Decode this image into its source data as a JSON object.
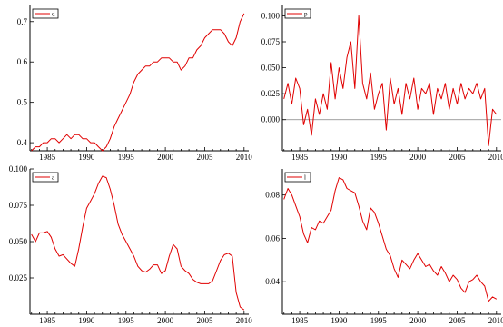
{
  "chart_data": [
    {
      "type": "line",
      "x_range": [
        1982.8,
        2010.6
      ],
      "ylim": [
        0.38,
        0.74
      ],
      "yticks": [
        0.4,
        0.5,
        0.6,
        0.7
      ],
      "ytick_labels": [
        "0.4",
        "0.5",
        "0.6",
        "0.7"
      ],
      "xticks": [
        1985,
        1990,
        1995,
        2000,
        2005,
        2010
      ],
      "xtick_labels": [
        "1985",
        "1990",
        "1995",
        "2000",
        "2005",
        "2010"
      ],
      "zero_line": false,
      "legend": "top-left",
      "colors": {
        "series": "#e00000"
      },
      "series": [
        {
          "name": "d",
          "x": [
            1983.0,
            1983.5,
            1984.0,
            1984.5,
            1985.0,
            1985.5,
            1986.0,
            1986.5,
            1987.0,
            1987.5,
            1988.0,
            1988.5,
            1989.0,
            1989.5,
            1990.0,
            1990.5,
            1991.0,
            1991.5,
            1992.0,
            1992.5,
            1993.0,
            1993.5,
            1994.0,
            1994.5,
            1995.0,
            1995.5,
            1996.0,
            1996.5,
            1997.0,
            1997.5,
            1998.0,
            1998.5,
            1999.0,
            1999.5,
            2000.0,
            2000.5,
            2001.0,
            2001.5,
            2002.0,
            2002.5,
            2003.0,
            2003.5,
            2004.0,
            2004.5,
            2005.0,
            2005.5,
            2006.0,
            2006.5,
            2007.0,
            2007.5,
            2008.0,
            2008.5,
            2009.0,
            2009.5,
            2010.0
          ],
          "values": [
            0.38,
            0.39,
            0.39,
            0.4,
            0.4,
            0.41,
            0.41,
            0.4,
            0.41,
            0.42,
            0.41,
            0.42,
            0.42,
            0.41,
            0.41,
            0.4,
            0.4,
            0.39,
            0.38,
            0.39,
            0.41,
            0.44,
            0.46,
            0.48,
            0.5,
            0.52,
            0.55,
            0.57,
            0.58,
            0.59,
            0.59,
            0.6,
            0.6,
            0.61,
            0.61,
            0.61,
            0.6,
            0.6,
            0.58,
            0.59,
            0.61,
            0.61,
            0.63,
            0.64,
            0.66,
            0.67,
            0.68,
            0.68,
            0.68,
            0.67,
            0.65,
            0.64,
            0.66,
            0.7,
            0.72
          ]
        }
      ]
    },
    {
      "type": "line",
      "x_range": [
        1982.8,
        2010.6
      ],
      "ylim": [
        -0.03,
        0.11
      ],
      "yticks": [
        0.0,
        0.025,
        0.05,
        0.075,
        0.1
      ],
      "ytick_labels": [
        "0.000",
        "0.025",
        "0.050",
        "0.075",
        "0.100"
      ],
      "xticks": [
        1985,
        1990,
        1995,
        2000,
        2005,
        2010
      ],
      "xtick_labels": [
        "1985",
        "1990",
        "1995",
        "2000",
        "2005",
        "2010"
      ],
      "zero_line": true,
      "legend": "top-left",
      "colors": {
        "series": "#e00000"
      },
      "series": [
        {
          "name": "p",
          "x": [
            1983.0,
            1983.5,
            1984.0,
            1984.5,
            1985.0,
            1985.5,
            1986.0,
            1986.5,
            1987.0,
            1987.5,
            1988.0,
            1988.5,
            1989.0,
            1989.5,
            1990.0,
            1990.5,
            1991.0,
            1991.5,
            1992.0,
            1992.5,
            1993.0,
            1993.5,
            1994.0,
            1994.5,
            1995.0,
            1995.5,
            1996.0,
            1996.5,
            1997.0,
            1997.5,
            1998.0,
            1998.5,
            1999.0,
            1999.5,
            2000.0,
            2000.5,
            2001.0,
            2001.5,
            2002.0,
            2002.5,
            2003.0,
            2003.5,
            2004.0,
            2004.5,
            2005.0,
            2005.5,
            2006.0,
            2006.5,
            2007.0,
            2007.5,
            2008.0,
            2008.5,
            2009.0,
            2009.5,
            2010.0
          ],
          "values": [
            0.02,
            0.035,
            0.015,
            0.04,
            0.03,
            -0.005,
            0.01,
            -0.015,
            0.02,
            0.005,
            0.025,
            0.01,
            0.055,
            0.02,
            0.05,
            0.03,
            0.06,
            0.075,
            0.03,
            0.1,
            0.035,
            0.02,
            0.045,
            0.01,
            0.025,
            0.035,
            -0.01,
            0.04,
            0.015,
            0.03,
            0.005,
            0.035,
            0.02,
            0.04,
            0.01,
            0.03,
            0.025,
            0.035,
            0.005,
            0.03,
            0.02,
            0.035,
            0.01,
            0.03,
            0.015,
            0.035,
            0.02,
            0.03,
            0.025,
            0.035,
            0.02,
            0.03,
            -0.025,
            0.01,
            0.005
          ]
        }
      ]
    },
    {
      "type": "line",
      "x_range": [
        1982.8,
        2010.6
      ],
      "ylim": [
        0.0,
        0.1
      ],
      "yticks": [
        0.025,
        0.05,
        0.075,
        0.1
      ],
      "ytick_labels": [
        "0.025",
        "0.050",
        "0.075",
        "0.100"
      ],
      "xticks": [
        1985,
        1990,
        1995,
        2000,
        2005,
        2010
      ],
      "xtick_labels": [
        "1985",
        "1990",
        "1995",
        "2000",
        "2005",
        "2010"
      ],
      "zero_line": false,
      "legend": "top-left",
      "colors": {
        "series": "#e00000"
      },
      "series": [
        {
          "name": "a",
          "x": [
            1983.0,
            1983.5,
            1984.0,
            1984.5,
            1985.0,
            1985.5,
            1986.0,
            1986.5,
            1987.0,
            1987.5,
            1988.0,
            1988.5,
            1989.0,
            1989.5,
            1990.0,
            1990.5,
            1991.0,
            1991.5,
            1992.0,
            1992.5,
            1993.0,
            1993.5,
            1994.0,
            1994.5,
            1995.0,
            1995.5,
            1996.0,
            1996.5,
            1997.0,
            1997.5,
            1998.0,
            1998.5,
            1999.0,
            1999.5,
            2000.0,
            2000.5,
            2001.0,
            2001.5,
            2002.0,
            2002.5,
            2003.0,
            2003.5,
            2004.0,
            2004.5,
            2005.0,
            2005.5,
            2006.0,
            2006.5,
            2007.0,
            2007.5,
            2008.0,
            2008.5,
            2009.0,
            2009.5,
            2010.0
          ],
          "values": [
            0.055,
            0.05,
            0.056,
            0.056,
            0.057,
            0.053,
            0.045,
            0.04,
            0.041,
            0.038,
            0.035,
            0.033,
            0.045,
            0.06,
            0.073,
            0.078,
            0.083,
            0.09,
            0.095,
            0.094,
            0.086,
            0.075,
            0.062,
            0.055,
            0.05,
            0.045,
            0.04,
            0.033,
            0.03,
            0.029,
            0.031,
            0.034,
            0.034,
            0.028,
            0.03,
            0.04,
            0.048,
            0.045,
            0.033,
            0.03,
            0.028,
            0.024,
            0.022,
            0.021,
            0.021,
            0.021,
            0.023,
            0.03,
            0.037,
            0.041,
            0.042,
            0.04,
            0.015,
            0.005,
            0.003
          ]
        }
      ]
    },
    {
      "type": "line",
      "x_range": [
        1982.8,
        2010.6
      ],
      "ylim": [
        0.025,
        0.092
      ],
      "yticks": [
        0.04,
        0.06,
        0.08
      ],
      "ytick_labels": [
        "0.04",
        "0.06",
        "0.08"
      ],
      "xticks": [
        1985,
        1990,
        1995,
        2000,
        2005,
        2010
      ],
      "xtick_labels": [
        "1985",
        "1990",
        "1995",
        "2000",
        "2005",
        "2010"
      ],
      "zero_line": false,
      "legend": "top-left",
      "colors": {
        "series": "#e00000"
      },
      "series": [
        {
          "name": "l",
          "x": [
            1983.0,
            1983.5,
            1984.0,
            1984.5,
            1985.0,
            1985.5,
            1986.0,
            1986.5,
            1987.0,
            1987.5,
            1988.0,
            1988.5,
            1989.0,
            1989.5,
            1990.0,
            1990.5,
            1991.0,
            1991.5,
            1992.0,
            1992.5,
            1993.0,
            1993.5,
            1994.0,
            1994.5,
            1995.0,
            1995.5,
            1996.0,
            1996.5,
            1997.0,
            1997.5,
            1998.0,
            1998.5,
            1999.0,
            1999.5,
            2000.0,
            2000.5,
            2001.0,
            2001.5,
            2002.0,
            2002.5,
            2003.0,
            2003.5,
            2004.0,
            2004.5,
            2005.0,
            2005.5,
            2006.0,
            2006.5,
            2007.0,
            2007.5,
            2008.0,
            2008.5,
            2009.0,
            2009.5,
            2010.0
          ],
          "values": [
            0.078,
            0.083,
            0.08,
            0.075,
            0.07,
            0.062,
            0.058,
            0.065,
            0.064,
            0.068,
            0.067,
            0.07,
            0.073,
            0.082,
            0.088,
            0.087,
            0.083,
            0.082,
            0.081,
            0.075,
            0.068,
            0.064,
            0.074,
            0.072,
            0.067,
            0.061,
            0.055,
            0.052,
            0.046,
            0.042,
            0.05,
            0.048,
            0.046,
            0.05,
            0.053,
            0.05,
            0.047,
            0.048,
            0.045,
            0.043,
            0.047,
            0.044,
            0.04,
            0.043,
            0.041,
            0.037,
            0.035,
            0.04,
            0.041,
            0.043,
            0.04,
            0.038,
            0.031,
            0.033,
            0.032
          ]
        }
      ]
    }
  ]
}
